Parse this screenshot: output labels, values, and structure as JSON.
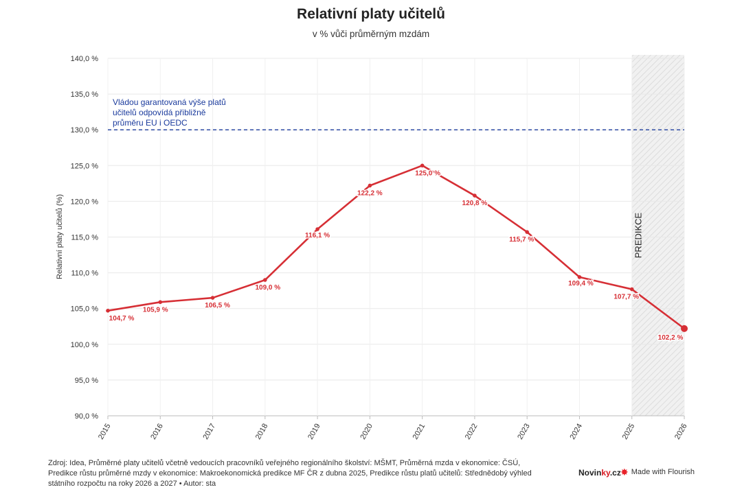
{
  "title": "Relativní platy učitelů",
  "subtitle": "v % vůči průměrným mzdám",
  "chart_data": {
    "type": "line",
    "ylabel": "Relativní platy učitelů (%)",
    "ylim": [
      90,
      140
    ],
    "yticks": [
      90,
      95,
      100,
      105,
      110,
      115,
      120,
      125,
      130,
      135,
      140
    ],
    "ytick_labels": [
      "90,0 %",
      "95,0 %",
      "100,0 %",
      "105,0 %",
      "110,0 %",
      "115,0 %",
      "120,0 %",
      "125,0 %",
      "130,0 %",
      "135,0 %",
      "140,0 %"
    ],
    "x": [
      "2015",
      "2016",
      "2017",
      "2018",
      "2019",
      "2020",
      "2021",
      "2022",
      "2023",
      "2024",
      "2025",
      "2026"
    ],
    "series": [
      {
        "values": [
          104.7,
          105.9,
          106.5,
          109.0,
          116.1,
          122.2,
          125.0,
          120.8,
          115.7,
          109.4,
          107.7,
          102.2
        ],
        "labels": [
          "104,7 %",
          "105,9 %",
          "106,5 %",
          "109,0 %",
          "116,1 %",
          "122,2 %",
          "125,0 %",
          "120,8 %",
          "115,7 %",
          "109,4 %",
          "107,7 %",
          "102,2 %"
        ],
        "color": "#d62f35"
      }
    ],
    "reference_line": {
      "value": 130,
      "color": "#1a3a9c",
      "label_lines": [
        "Vládou garantovaná výše platů",
        "učitelů odpovídá přibližně",
        "průměru EU i OEDC"
      ]
    },
    "prediction_region": {
      "from": "2025",
      "to": "2026",
      "label": "PREDIKCE"
    },
    "grid": true
  },
  "footer": {
    "source_lines": [
      "Zdroj: Idea, Průměrné platy učitelů včetně vedoucích pracovníků veřejného regionálního školství: MŠMT, Průměrná mzda v ekonomice: ČSÚ,",
      "Predikce růstu průměrné mzdy v ekonomice: Makroekonomická predikce MF ČR z dubna 2025, Predikce růstu platů učitelů: Střednědobý výhled",
      "státního rozpočtu na roky 2026 a 2027 • Autor: sta"
    ],
    "brand_part1": "Novin",
    "brand_part2": "ky",
    "brand_part3": ".cz",
    "flourish_text": "Made with Flourish"
  }
}
